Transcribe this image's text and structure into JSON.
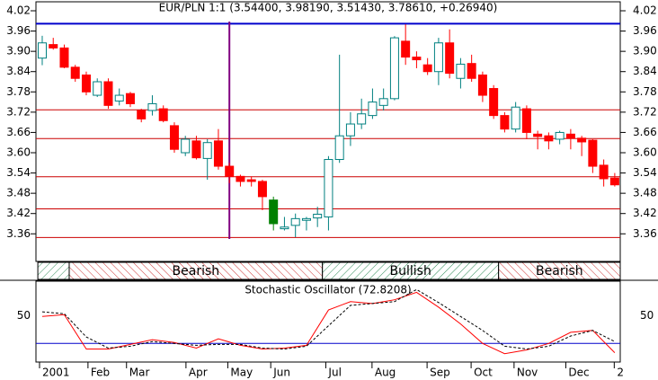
{
  "chart_data": [
    {
      "type": "candlestick",
      "title": "EUR/PLN 1:1 (3.54400, 3.98190, 3.51430, 3.78610, +0.26940)",
      "candles": [
        {
          "open": 3.88,
          "high": 3.946,
          "low": 3.859,
          "close": 3.925
        },
        {
          "open": 3.92,
          "high": 3.94,
          "low": 3.905,
          "close": 3.91
        },
        {
          "open": 3.91,
          "high": 3.92,
          "low": 3.85,
          "close": 3.853
        },
        {
          "open": 3.853,
          "high": 3.86,
          "low": 3.81,
          "close": 3.82
        },
        {
          "open": 3.83,
          "high": 3.84,
          "low": 3.77,
          "close": 3.78
        },
        {
          "open": 3.77,
          "high": 3.82,
          "low": 3.765,
          "close": 3.81
        },
        {
          "open": 3.81,
          "high": 3.82,
          "low": 3.73,
          "close": 3.74
        },
        {
          "open": 3.753,
          "high": 3.79,
          "low": 3.74,
          "close": 3.77
        },
        {
          "open": 3.775,
          "high": 3.78,
          "low": 3.735,
          "close": 3.745
        },
        {
          "open": 3.725,
          "high": 3.73,
          "low": 3.69,
          "close": 3.7
        },
        {
          "open": 3.725,
          "high": 3.77,
          "low": 3.71,
          "close": 3.745
        },
        {
          "open": 3.73,
          "high": 3.74,
          "low": 3.69,
          "close": 3.695
        },
        {
          "open": 3.68,
          "high": 3.69,
          "low": 3.6,
          "close": 3.61
        },
        {
          "open": 3.6,
          "high": 3.65,
          "low": 3.59,
          "close": 3.64
        },
        {
          "open": 3.635,
          "high": 3.65,
          "low": 3.58,
          "close": 3.585
        },
        {
          "open": 3.583,
          "high": 3.64,
          "low": 3.52,
          "close": 3.63
        },
        {
          "open": 3.635,
          "high": 3.67,
          "low": 3.55,
          "close": 3.56
        },
        {
          "open": 3.56,
          "high": 3.57,
          "low": 3.51,
          "close": 3.53
        },
        {
          "open": 3.53,
          "high": 3.535,
          "low": 3.5,
          "close": 3.515
        },
        {
          "open": 3.52,
          "high": 3.53,
          "low": 3.5,
          "close": 3.515
        },
        {
          "open": 3.515,
          "high": 3.52,
          "low": 3.43,
          "close": 3.47
        },
        {
          "open": 3.46,
          "high": 3.47,
          "low": 3.37,
          "close": 3.39,
          "color": "#008000"
        },
        {
          "open": 3.375,
          "high": 3.41,
          "low": 3.37,
          "close": 3.38
        },
        {
          "open": 3.385,
          "high": 3.42,
          "low": 3.35,
          "close": 3.405
        },
        {
          "open": 3.4,
          "high": 3.41,
          "low": 3.37,
          "close": 3.405
        },
        {
          "open": 3.407,
          "high": 3.44,
          "low": 3.38,
          "close": 3.418
        },
        {
          "open": 3.41,
          "high": 3.59,
          "low": 3.37,
          "close": 3.58
        },
        {
          "open": 3.58,
          "high": 3.89,
          "low": 3.57,
          "close": 3.65
        },
        {
          "open": 3.65,
          "high": 3.72,
          "low": 3.62,
          "close": 3.685
        },
        {
          "open": 3.685,
          "high": 3.76,
          "low": 3.67,
          "close": 3.715
        },
        {
          "open": 3.71,
          "high": 3.79,
          "low": 3.7,
          "close": 3.75
        },
        {
          "open": 3.74,
          "high": 3.79,
          "low": 3.725,
          "close": 3.76
        },
        {
          "open": 3.76,
          "high": 3.945,
          "low": 3.755,
          "close": 3.94
        },
        {
          "open": 3.93,
          "high": 3.98,
          "low": 3.86,
          "close": 3.883
        },
        {
          "open": 3.883,
          "high": 3.9,
          "low": 3.85,
          "close": 3.875
        },
        {
          "open": 3.86,
          "high": 3.88,
          "low": 3.83,
          "close": 3.84
        },
        {
          "open": 3.84,
          "high": 3.94,
          "low": 3.8,
          "close": 3.925
        },
        {
          "open": 3.925,
          "high": 3.965,
          "low": 3.82,
          "close": 3.835
        },
        {
          "open": 3.82,
          "high": 3.88,
          "low": 3.79,
          "close": 3.862
        },
        {
          "open": 3.864,
          "high": 3.89,
          "low": 3.81,
          "close": 3.82
        },
        {
          "open": 3.83,
          "high": 3.84,
          "low": 3.75,
          "close": 3.77
        },
        {
          "open": 3.79,
          "high": 3.8,
          "low": 3.7,
          "close": 3.71
        },
        {
          "open": 3.71,
          "high": 3.72,
          "low": 3.66,
          "close": 3.67
        },
        {
          "open": 3.67,
          "high": 3.75,
          "low": 3.66,
          "close": 3.735
        },
        {
          "open": 3.73,
          "high": 3.74,
          "low": 3.64,
          "close": 3.66
        },
        {
          "open": 3.655,
          "high": 3.665,
          "low": 3.61,
          "close": 3.648
        },
        {
          "open": 3.65,
          "high": 3.66,
          "low": 3.61,
          "close": 3.635
        },
        {
          "open": 3.64,
          "high": 3.665,
          "low": 3.625,
          "close": 3.66
        },
        {
          "open": 3.655,
          "high": 3.67,
          "low": 3.61,
          "close": 3.643
        },
        {
          "open": 3.643,
          "high": 3.65,
          "low": 3.59,
          "close": 3.632
        },
        {
          "open": 3.637,
          "high": 3.64,
          "low": 3.54,
          "close": 3.56
        },
        {
          "open": 3.563,
          "high": 3.58,
          "low": 3.5,
          "close": 3.523
        },
        {
          "open": 3.525,
          "high": 3.54,
          "low": 3.5,
          "close": 3.505
        }
      ],
      "up_color": "#008080",
      "down_color": "#ff0000",
      "xlim": [
        -0.57,
        52.5
      ],
      "xticks": [
        {
          "value": 0,
          "label": "2001"
        },
        {
          "value": 4.4,
          "label": "Feb"
        },
        {
          "value": 7.9,
          "label": "Mar"
        },
        {
          "value": 13.3,
          "label": "Apr"
        },
        {
          "value": 17.1,
          "label": "May"
        },
        {
          "value": 21,
          "label": "Jun"
        },
        {
          "value": 26,
          "label": "Jul"
        },
        {
          "value": 30.2,
          "label": "Aug"
        },
        {
          "value": 35.2,
          "label": "Sep"
        },
        {
          "value": 39.2,
          "label": "Oct"
        },
        {
          "value": 43.1,
          "label": "Nov"
        },
        {
          "value": 47.8,
          "label": "Dec"
        },
        {
          "value": 52.2,
          "label": "2"
        }
      ],
      "ylim": [
        3.281,
        4.02
      ],
      "yticks": [
        3.36,
        3.42,
        3.48,
        3.54,
        {
          "value": 3.6,
          "label": "3.60"
        },
        3.66,
        3.72,
        3.78,
        3.84,
        {
          "value": 3.9,
          "label": "3.90"
        },
        3.96,
        4.02
      ],
      "hlines": [
        3.727,
        3.642,
        3.529,
        3.434,
        3.349
      ],
      "hline_color": "#cc0000",
      "reference_line": {
        "value": 3.9819,
        "color": "#0000cc"
      },
      "vline": {
        "x": 17,
        "color": "#800080"
      },
      "regions": [
        {
          "start": -0.4,
          "end": 2.45,
          "trend": "bull"
        },
        {
          "start": 2.45,
          "end": 25.45,
          "trend": "bear",
          "label": "Bearish"
        },
        {
          "start": 25.45,
          "end": 41.45,
          "trend": "bull",
          "label": "Bullish"
        },
        {
          "start": 41.45,
          "end": 52.5,
          "trend": "bear",
          "label": "Bearish"
        }
      ]
    },
    {
      "type": "line",
      "title": "Stochastic Oscillator (72.8208)",
      "x": [
        0,
        2,
        4,
        6,
        8,
        10,
        12,
        14,
        16,
        18,
        20,
        22,
        24,
        26,
        28,
        30,
        32,
        34,
        36,
        38,
        40,
        42,
        44,
        46,
        48,
        50,
        52
      ],
      "series": [
        {
          "color": "#ff0000",
          "dash": false,
          "values": [
            49,
            51,
            14,
            14,
            19,
            24,
            21,
            15,
            25,
            18,
            14,
            15,
            18,
            56,
            65,
            63,
            67,
            75,
            59,
            41,
            20,
            9,
            13,
            20,
            32,
            34,
            10
          ]
        },
        {
          "color": "#000000",
          "dash": true,
          "values": [
            54,
            52,
            27,
            15,
            17,
            22,
            20,
            18,
            19,
            19,
            15,
            14,
            17,
            39,
            61,
            63,
            65,
            78,
            64,
            49,
            34,
            17,
            14,
            17,
            28,
            34,
            22
          ]
        }
      ],
      "ylim": [
        0,
        87
      ],
      "yticks": [
        50
      ],
      "level": 20,
      "level_color": "#0000cc"
    }
  ]
}
